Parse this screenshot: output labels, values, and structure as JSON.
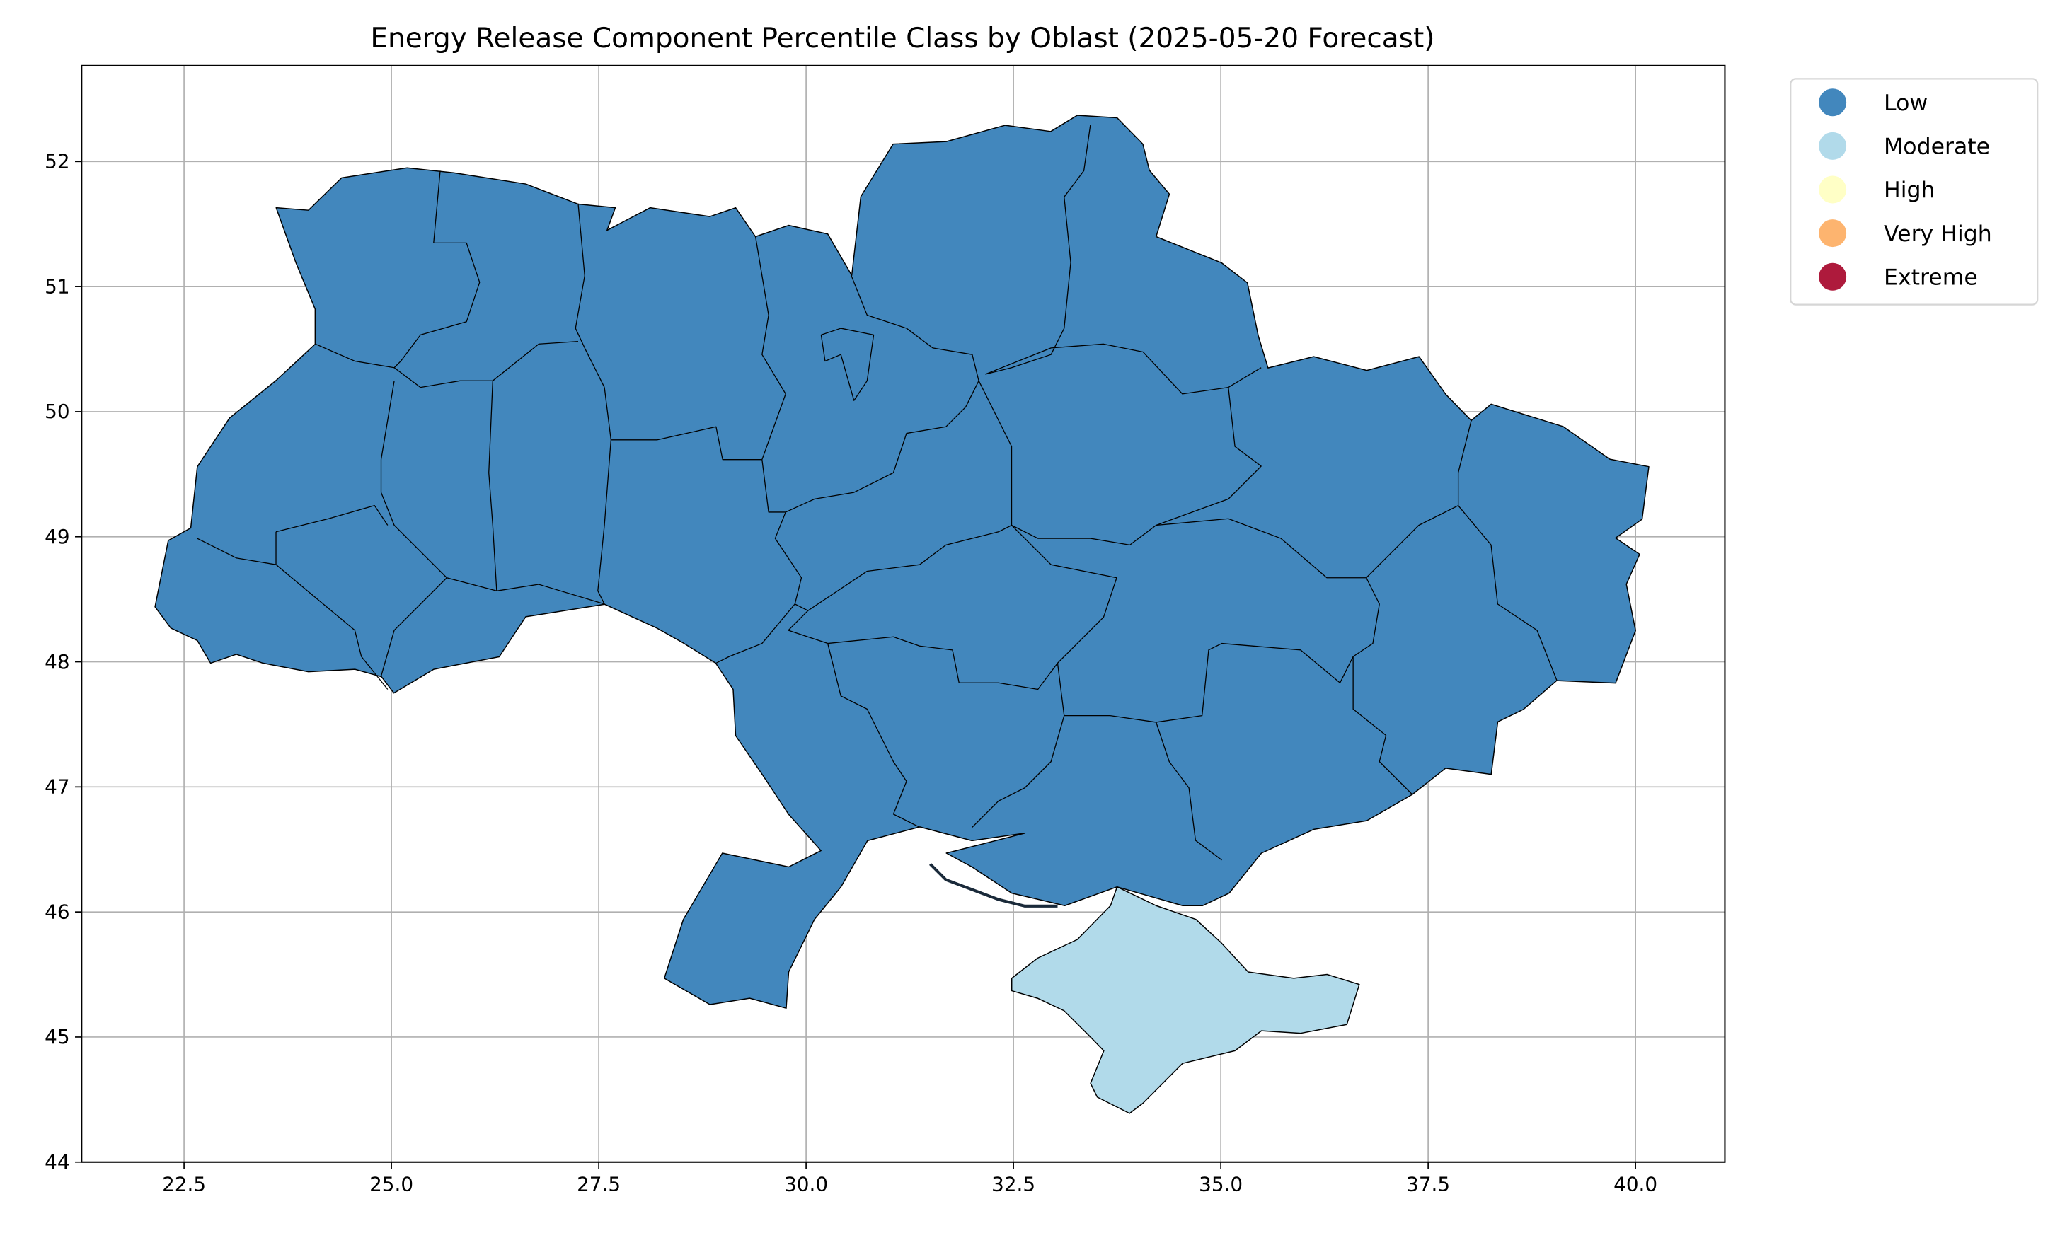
{
  "chart_data": {
    "type": "choropleth",
    "title": "Energy Release Component Percentile Class by Oblast (2025-05-20 Forecast)",
    "xlabel": "",
    "ylabel": "",
    "xlim": [
      21.26,
      41.08
    ],
    "ylim": [
      44.0,
      52.76
    ],
    "xticks": [
      "22.5",
      "25.0",
      "27.5",
      "30.0",
      "32.5",
      "35.0",
      "37.5",
      "40.0"
    ],
    "yticks": [
      "44",
      "45",
      "46",
      "47",
      "48",
      "49",
      "50",
      "51",
      "52"
    ],
    "grid": true,
    "legend_position": "outside-top-right",
    "legend": [
      {
        "label": "Low",
        "color": "#4287bd"
      },
      {
        "label": "Moderate",
        "color": "#b1daea"
      },
      {
        "label": "High",
        "color": "#ffffc6"
      },
      {
        "label": "Very High",
        "color": "#fdb46f"
      },
      {
        "label": "Extreme",
        "color": "#ae1a3c"
      }
    ],
    "regions": [
      {
        "class": "Low",
        "lon": [
          22.15,
          22.31,
          22.58,
          22.66,
          23.05,
          23.61,
          24.08,
          24.08,
          23.85,
          23.61,
          24.0,
          24.4,
          25.19,
          25.75,
          26.62,
          27.25,
          27.7,
          27.6,
          28.12,
          28.84,
          29.15,
          29.39,
          29.79,
          30.26,
          30.55,
          30.66,
          31.05,
          31.69,
          32.4,
          32.95,
          33.27,
          33.75,
          34.06,
          34.14,
          34.38,
          34.22,
          35.01,
          35.32,
          35.45,
          35.57,
          36.12,
          36.76,
          37.39,
          37.71,
          38.02,
          38.26,
          39.13,
          39.69,
          40.16,
          40.08,
          39.76,
          40.05,
          39.89,
          40.0,
          39.76,
          39.05,
          38.65,
          38.34,
          38.26,
          37.71,
          37.31,
          36.76,
          36.12,
          35.49,
          35.1,
          34.78,
          34.54,
          33.75,
          33.12,
          32.48,
          32.0,
          31.69,
          32.64,
          32.0,
          31.37,
          30.74,
          30.42,
          30.1,
          29.79,
          29.76,
          29.32,
          28.84,
          28.29,
          28.52,
          28.99,
          29.79,
          30.18,
          29.79,
          29.47,
          29.15,
          29.12,
          28.91,
          28.52,
          28.2,
          27.57,
          26.62,
          26.3,
          25.51,
          25.03,
          24.88,
          24.56,
          24.0,
          23.45,
          23.13,
          22.82,
          22.66,
          22.34
        ],
        "lat": [
          48.44,
          48.97,
          49.07,
          49.56,
          49.95,
          50.25,
          50.54,
          50.82,
          51.19,
          51.63,
          51.61,
          51.87,
          51.95,
          51.91,
          51.82,
          51.66,
          51.63,
          51.45,
          51.63,
          51.56,
          51.63,
          51.4,
          51.49,
          51.42,
          51.09,
          51.72,
          52.14,
          52.16,
          52.29,
          52.24,
          52.37,
          52.35,
          52.14,
          51.93,
          51.74,
          51.4,
          51.19,
          51.03,
          50.61,
          50.35,
          50.44,
          50.33,
          50.44,
          50.14,
          49.93,
          50.06,
          49.88,
          49.62,
          49.56,
          49.14,
          48.99,
          48.86,
          48.62,
          48.25,
          47.83,
          47.85,
          47.62,
          47.52,
          47.1,
          47.15,
          46.94,
          46.73,
          46.66,
          46.47,
          46.15,
          46.05,
          46.05,
          46.2,
          46.05,
          46.15,
          46.36,
          46.47,
          46.63,
          46.57,
          46.68,
          46.57,
          46.2,
          45.94,
          45.52,
          45.23,
          45.31,
          45.26,
          45.47,
          45.94,
          46.47,
          46.36,
          46.49,
          46.78,
          47.1,
          47.41,
          47.78,
          47.99,
          48.15,
          48.27,
          48.46,
          48.36,
          48.04,
          47.94,
          47.75,
          47.88,
          47.94,
          47.92,
          47.99,
          48.06,
          47.99,
          48.17,
          48.27
        ]
      },
      {
        "class": "Moderate",
        "lon": [
          32.48,
          32.79,
          33.27,
          33.67,
          33.75,
          34.22,
          34.7,
          35.01,
          35.33,
          35.88,
          36.28,
          36.67,
          36.52,
          35.96,
          35.49,
          35.17,
          34.54,
          34.06,
          33.9,
          33.51,
          33.43,
          33.59,
          33.43,
          33.11,
          32.79,
          32.48
        ],
        "lat": [
          45.47,
          45.63,
          45.78,
          46.05,
          46.2,
          46.05,
          45.94,
          45.75,
          45.52,
          45.47,
          45.5,
          45.42,
          45.1,
          45.03,
          45.05,
          44.89,
          44.79,
          44.47,
          44.39,
          44.52,
          44.63,
          44.89,
          45.0,
          45.21,
          45.31,
          45.37
        ]
      }
    ]
  }
}
